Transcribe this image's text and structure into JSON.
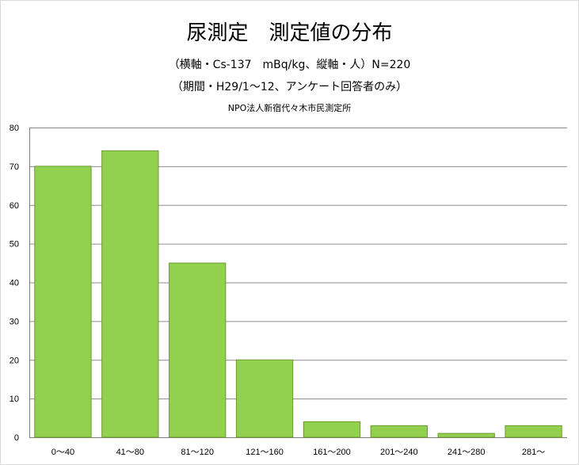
{
  "chart_data": {
    "type": "bar",
    "title": "尿測定　測定値の分布",
    "subtitle_lines": [
      "（横軸・Cs-137　mBq/kg、縦軸・人）N=220",
      "（期間・H29/1～12、アンケート回答者のみ）",
      "NPO法人新宿代々木市民測定所"
    ],
    "categories": [
      "0～40",
      "41～80",
      "81～120",
      "121～160",
      "161～200",
      "201～240",
      "241～280",
      "281～"
    ],
    "values": [
      70,
      74,
      45,
      20,
      4,
      3,
      1,
      3
    ],
    "ylim": [
      0,
      80
    ],
    "yticks": [
      0,
      10,
      20,
      30,
      40,
      50,
      60,
      70,
      80
    ],
    "grid": true,
    "legend": "none",
    "colors": {
      "bar": "#92d050",
      "bar_border": "#6a9a2a",
      "grid": "#8c8c8c",
      "axis": "#7f7f7f"
    }
  }
}
